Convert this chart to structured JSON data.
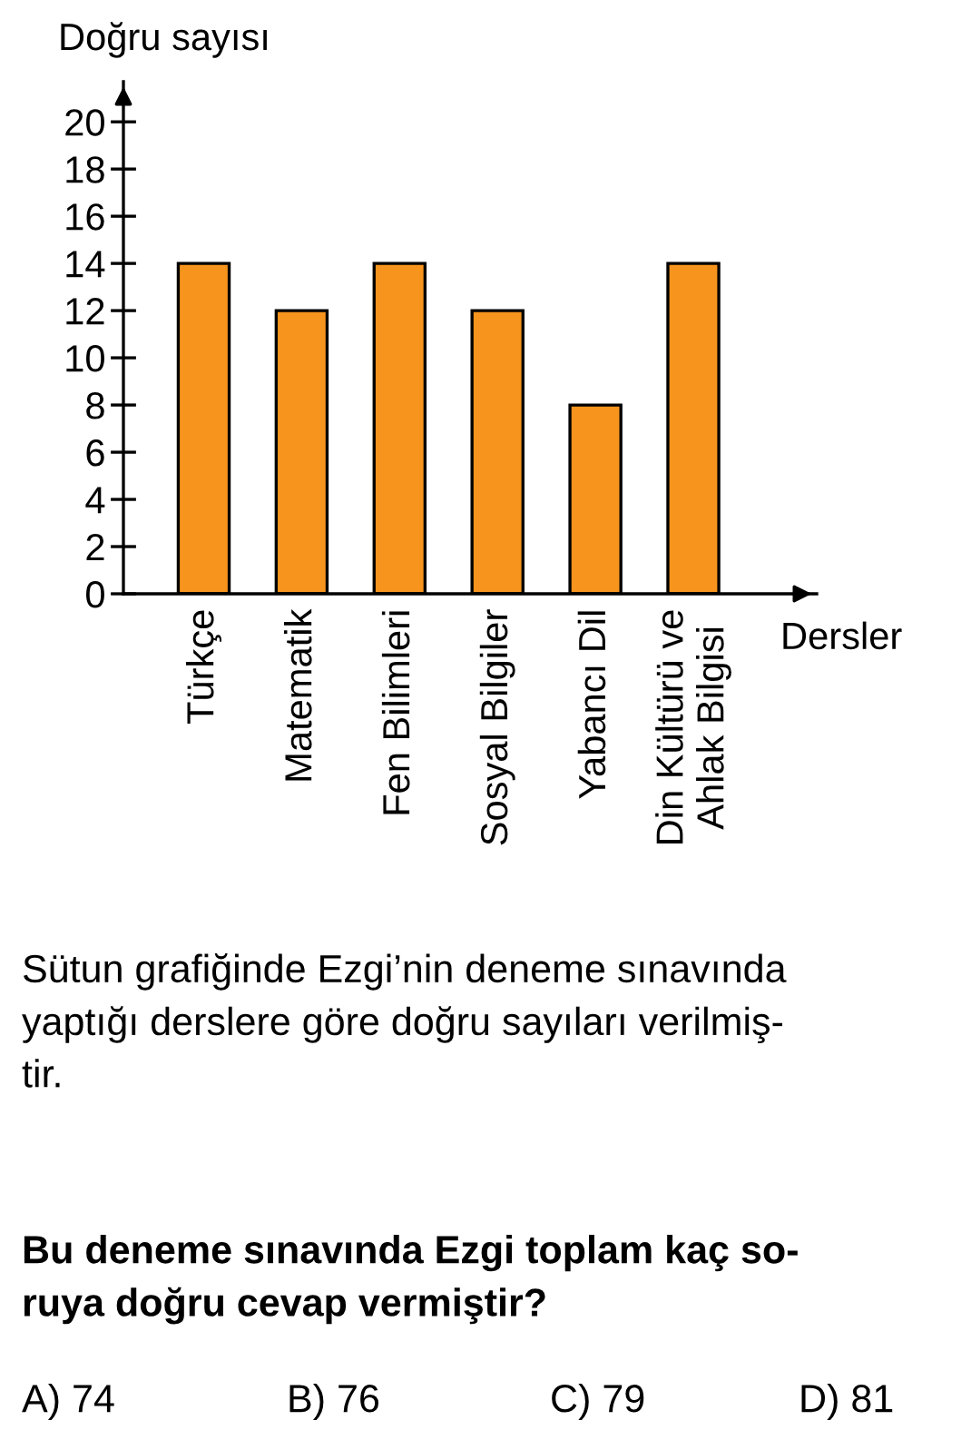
{
  "chart_data": {
    "type": "bar",
    "ylabel": "Doğru sayısı",
    "xlabel": "Dersler",
    "categories": [
      "Türkçe",
      "Matematik",
      "Fen Bilimleri",
      "Sosyal Bilgiler",
      "Yabancı Dil",
      "Din Kültürü ve\nAhlak Bilgisi"
    ],
    "values": [
      14,
      12,
      14,
      12,
      8,
      14
    ],
    "color": "#f7941d",
    "ylim": [
      0,
      21.7
    ],
    "yticks": [
      0,
      2,
      4,
      6,
      8,
      10,
      12,
      14,
      16,
      18,
      20
    ],
    "grid": false,
    "legend": false,
    "annotations": [
      "Sütun grafiğinde Ezgi’nin deneme sınavında\nyaptığı derslere göre doğru sayıları verilmiş-\ntir.",
      "Bu deneme sınavında Ezgi toplam kaç so-\nruya doğru cevap vermiştir?",
      "A) 74",
      "B) 76",
      "C) 79",
      "D) 81"
    ]
  }
}
